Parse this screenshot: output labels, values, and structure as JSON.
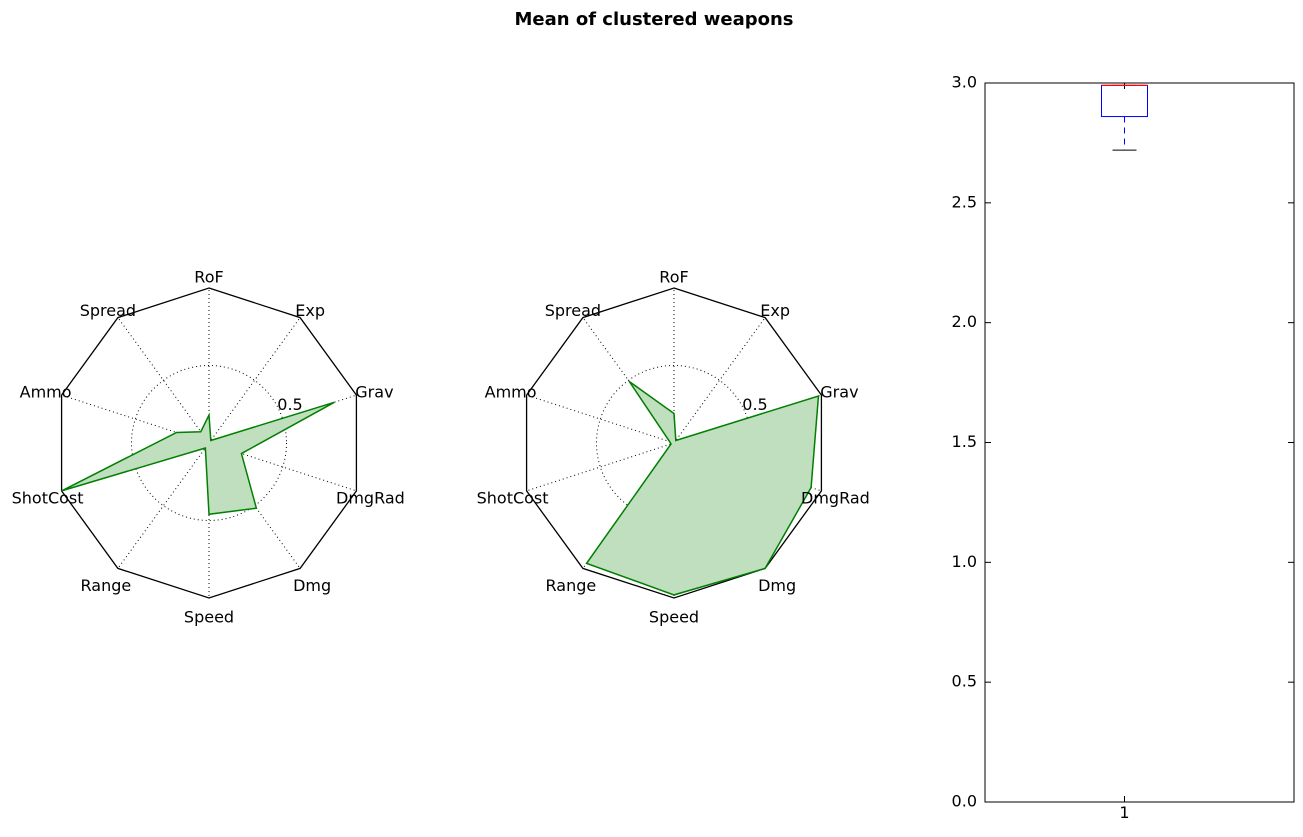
{
  "figure": {
    "title": "Mean of clustered weapons"
  },
  "chart_data": [
    {
      "type": "radar",
      "categories": [
        "RoF",
        "Exp",
        "Grav",
        "DmgRad",
        "Dmg",
        "Speed",
        "Range",
        "ShotCost",
        "Ammo",
        "Spread"
      ],
      "values": [
        0.18,
        0.02,
        0.85,
        0.22,
        0.52,
        0.46,
        0.04,
        1.0,
        0.22,
        0.09
      ],
      "rlim": [
        0,
        1
      ],
      "radial_tick_labels": [
        "0.5"
      ],
      "colors": {
        "line": "#007f00",
        "fill": "#bfdfbf",
        "grid": "#000000"
      }
    },
    {
      "type": "radar",
      "categories": [
        "RoF",
        "Exp",
        "Grav",
        "DmgRad",
        "Dmg",
        "Speed",
        "Range",
        "ShotCost",
        "Ammo",
        "Spread"
      ],
      "values": [
        0.19,
        0.02,
        0.98,
        0.93,
        1.0,
        0.98,
        0.96,
        0.02,
        0.03,
        0.49
      ],
      "rlim": [
        0,
        1
      ],
      "radial_tick_labels": [
        "0.5"
      ],
      "colors": {
        "line": "#007f00",
        "fill": "#bfdfbf",
        "grid": "#000000"
      }
    },
    {
      "type": "box",
      "categories": [
        "1"
      ],
      "box": {
        "whislo": 2.72,
        "q1": 2.86,
        "median": 2.99,
        "q3": 2.99,
        "whishi": 2.99
      },
      "ylim": [
        0.0,
        3.0
      ],
      "y_ticks": [
        "0.0",
        "0.5",
        "1.0",
        "1.5",
        "2.0",
        "2.5",
        "3.0"
      ],
      "colors": {
        "box": "#0000ff",
        "median": "#ff0000",
        "whisker": "#0000ff",
        "cap": "#000000"
      }
    }
  ]
}
